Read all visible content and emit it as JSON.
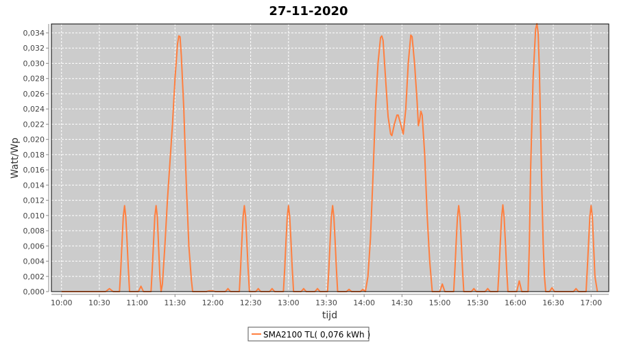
{
  "chart_data": {
    "type": "line",
    "title": "27-11-2020",
    "xlabel": "tijd",
    "ylabel": "Watt/Wp",
    "xlim": [
      "09:52",
      "17:14"
    ],
    "ylim": [
      0,
      0.03517
    ],
    "x_ticks": [
      "10:00",
      "10:30",
      "11:00",
      "11:30",
      "12:00",
      "12:30",
      "13:00",
      "13:30",
      "14:00",
      "14:30",
      "15:00",
      "15:30",
      "16:00",
      "16:30",
      "17:00"
    ],
    "y_ticks": [
      0,
      0.002,
      0.004,
      0.006,
      0.008,
      0.01,
      0.012,
      0.014,
      0.016,
      0.018,
      0.02,
      0.022,
      0.024,
      0.026,
      0.028,
      0.03,
      0.032,
      0.034
    ],
    "y_tick_labels": [
      "0,000",
      "0,002",
      "0,004",
      "0,006",
      "0,008",
      "0,010",
      "0,012",
      "0,014",
      "0,016",
      "0,018",
      "0,020",
      "0,022",
      "0,024",
      "0,026",
      "0,028",
      "0,030",
      "0,032",
      "0,034"
    ],
    "grid": true,
    "legend_placement": "bottom",
    "plot_background": "#cccccc",
    "series": [
      {
        "name": "SMA2100 TL( 0,076 kWh )",
        "color": "#ff7f3f",
        "points": [
          [
            "10:00",
            0
          ],
          [
            "10:32",
            0
          ],
          [
            "10:35",
            0
          ],
          [
            "10:38",
            0.0004
          ],
          [
            "10:41",
            0
          ],
          [
            "10:46",
            0
          ],
          [
            "10:47",
            0.003
          ],
          [
            "10:48",
            0.0065
          ],
          [
            "10:49",
            0.0098
          ],
          [
            "10:50",
            0.0113
          ],
          [
            "10:51",
            0.0098
          ],
          [
            "10:52",
            0.0065
          ],
          [
            "10:53",
            0.003
          ],
          [
            "10:54",
            0
          ],
          [
            "11:01",
            0
          ],
          [
            "11:03",
            0.0007
          ],
          [
            "11:05",
            0
          ],
          [
            "11:11",
            0
          ],
          [
            "11:12",
            0.003
          ],
          [
            "11:13",
            0.0065
          ],
          [
            "11:14",
            0.0098
          ],
          [
            "11:15",
            0.0113
          ],
          [
            "11:16",
            0.0098
          ],
          [
            "11:17",
            0.006
          ],
          [
            "11:18",
            0.002
          ],
          [
            "11:19",
            0
          ],
          [
            "11:20",
            0.001
          ],
          [
            "11:22",
            0.006
          ],
          [
            "11:24",
            0.012
          ],
          [
            "11:26",
            0.017
          ],
          [
            "11:28",
            0.022
          ],
          [
            "11:30",
            0.028
          ],
          [
            "11:32",
            0.0325
          ],
          [
            "11:33",
            0.0336
          ],
          [
            "11:34",
            0.0335
          ],
          [
            "11:35",
            0.031
          ],
          [
            "11:37",
            0.024
          ],
          [
            "11:39",
            0.014
          ],
          [
            "11:41",
            0.006
          ],
          [
            "11:43",
            0.0015
          ],
          [
            "11:44",
            0
          ],
          [
            "11:55",
            0
          ],
          [
            "11:57",
            0.0001
          ],
          [
            "12:00",
            0.0001
          ],
          [
            "12:02",
            0
          ],
          [
            "12:10",
            0
          ],
          [
            "12:12",
            0.0004
          ],
          [
            "12:14",
            0
          ],
          [
            "12:21",
            0
          ],
          [
            "12:22",
            0.003
          ],
          [
            "12:23",
            0.0065
          ],
          [
            "12:24",
            0.0098
          ],
          [
            "12:25",
            0.0113
          ],
          [
            "12:26",
            0.0098
          ],
          [
            "12:27",
            0.0065
          ],
          [
            "12:28",
            0.003
          ],
          [
            "12:29",
            0
          ],
          [
            "12:34",
            0
          ],
          [
            "12:36",
            0.0004
          ],
          [
            "12:38",
            0
          ],
          [
            "12:45",
            0
          ],
          [
            "12:47",
            0.0004
          ],
          [
            "12:49",
            0
          ],
          [
            "12:56",
            0
          ],
          [
            "12:57",
            0.003
          ],
          [
            "12:58",
            0.0065
          ],
          [
            "12:59",
            0.0098
          ],
          [
            "13:00",
            0.0113
          ],
          [
            "13:01",
            0.0098
          ],
          [
            "13:02",
            0.0065
          ],
          [
            "13:03",
            0.003
          ],
          [
            "13:04",
            0
          ],
          [
            "13:10",
            0
          ],
          [
            "13:12",
            0.0004
          ],
          [
            "13:14",
            0
          ],
          [
            "13:21",
            0
          ],
          [
            "13:23",
            0.0004
          ],
          [
            "13:25",
            0
          ],
          [
            "13:31",
            0
          ],
          [
            "13:32",
            0.003
          ],
          [
            "13:33",
            0.0065
          ],
          [
            "13:34",
            0.0098
          ],
          [
            "13:35",
            0.0113
          ],
          [
            "13:36",
            0.0098
          ],
          [
            "13:37",
            0.0065
          ],
          [
            "13:38",
            0.003
          ],
          [
            "13:39",
            0
          ],
          [
            "13:46",
            0
          ],
          [
            "13:48",
            0.0003
          ],
          [
            "13:50",
            0
          ],
          [
            "13:57",
            0
          ],
          [
            "13:59",
            0.0003
          ],
          [
            "14:01",
            0
          ],
          [
            "14:03",
            0.002
          ],
          [
            "14:05",
            0.007
          ],
          [
            "14:07",
            0.015
          ],
          [
            "14:09",
            0.024
          ],
          [
            "14:11",
            0.03
          ],
          [
            "14:13",
            0.0334
          ],
          [
            "14:14",
            0.0336
          ],
          [
            "14:15",
            0.033
          ],
          [
            "14:17",
            0.028
          ],
          [
            "14:19",
            0.023
          ],
          [
            "14:21",
            0.0207
          ],
          [
            "14:22",
            0.0205
          ],
          [
            "14:24",
            0.022
          ],
          [
            "14:26",
            0.0232
          ],
          [
            "14:27",
            0.0232
          ],
          [
            "14:29",
            0.022
          ],
          [
            "14:31",
            0.0207
          ],
          [
            "14:33",
            0.024
          ],
          [
            "14:35",
            0.03
          ],
          [
            "14:37",
            0.0337
          ],
          [
            "14:38",
            0.0335
          ],
          [
            "14:40",
            0.03
          ],
          [
            "14:42",
            0.025
          ],
          [
            "14:43",
            0.0218
          ],
          [
            "14:44",
            0.0225
          ],
          [
            "14:45",
            0.0237
          ],
          [
            "14:46",
            0.0232
          ],
          [
            "14:48",
            0.018
          ],
          [
            "14:50",
            0.01
          ],
          [
            "14:52",
            0.004
          ],
          [
            "14:54",
            0
          ],
          [
            "15:00",
            0
          ],
          [
            "15:02",
            0.001
          ],
          [
            "15:04",
            0
          ],
          [
            "15:11",
            0
          ],
          [
            "15:12",
            0.003
          ],
          [
            "15:13",
            0.0065
          ],
          [
            "15:14",
            0.0098
          ],
          [
            "15:15",
            0.0113
          ],
          [
            "15:16",
            0.0098
          ],
          [
            "15:17",
            0.0065
          ],
          [
            "15:18",
            0.003
          ],
          [
            "15:19",
            0
          ],
          [
            "15:25",
            0
          ],
          [
            "15:27",
            0.0004
          ],
          [
            "15:29",
            0
          ],
          [
            "15:36",
            0
          ],
          [
            "15:38",
            0.0004
          ],
          [
            "15:40",
            0
          ],
          [
            "15:46",
            0
          ],
          [
            "15:47",
            0.003
          ],
          [
            "15:48",
            0.0065
          ],
          [
            "15:49",
            0.0098
          ],
          [
            "15:50",
            0.0114
          ],
          [
            "15:51",
            0.0098
          ],
          [
            "15:52",
            0.0065
          ],
          [
            "15:53",
            0.003
          ],
          [
            "15:54",
            0
          ],
          [
            "16:01",
            0
          ],
          [
            "16:03",
            0.0014
          ],
          [
            "16:05",
            0
          ],
          [
            "16:10",
            0
          ],
          [
            "16:11",
            0.006
          ],
          [
            "16:12",
            0.016
          ],
          [
            "16:14",
            0.028
          ],
          [
            "16:16",
            0.0345
          ],
          [
            "16:17",
            0.0352
          ],
          [
            "16:18",
            0.034
          ],
          [
            "16:19",
            0.029
          ],
          [
            "16:20",
            0.021
          ],
          [
            "16:21",
            0.013
          ],
          [
            "16:22",
            0.006
          ],
          [
            "16:23",
            0.002
          ],
          [
            "16:24",
            0
          ],
          [
            "16:27",
            0
          ],
          [
            "16:29",
            0.0005
          ],
          [
            "16:31",
            0
          ],
          [
            "16:46",
            0
          ],
          [
            "16:48",
            0.0004
          ],
          [
            "16:50",
            0
          ],
          [
            "16:56",
            0
          ],
          [
            "16:57",
            0.003
          ],
          [
            "16:58",
            0.0065
          ],
          [
            "16:59",
            0.0098
          ],
          [
            "17:00",
            0.0113
          ],
          [
            "17:01",
            0.0098
          ],
          [
            "17:02",
            0.006
          ],
          [
            "17:03",
            0.002
          ],
          [
            "17:05",
            0
          ]
        ]
      }
    ]
  }
}
